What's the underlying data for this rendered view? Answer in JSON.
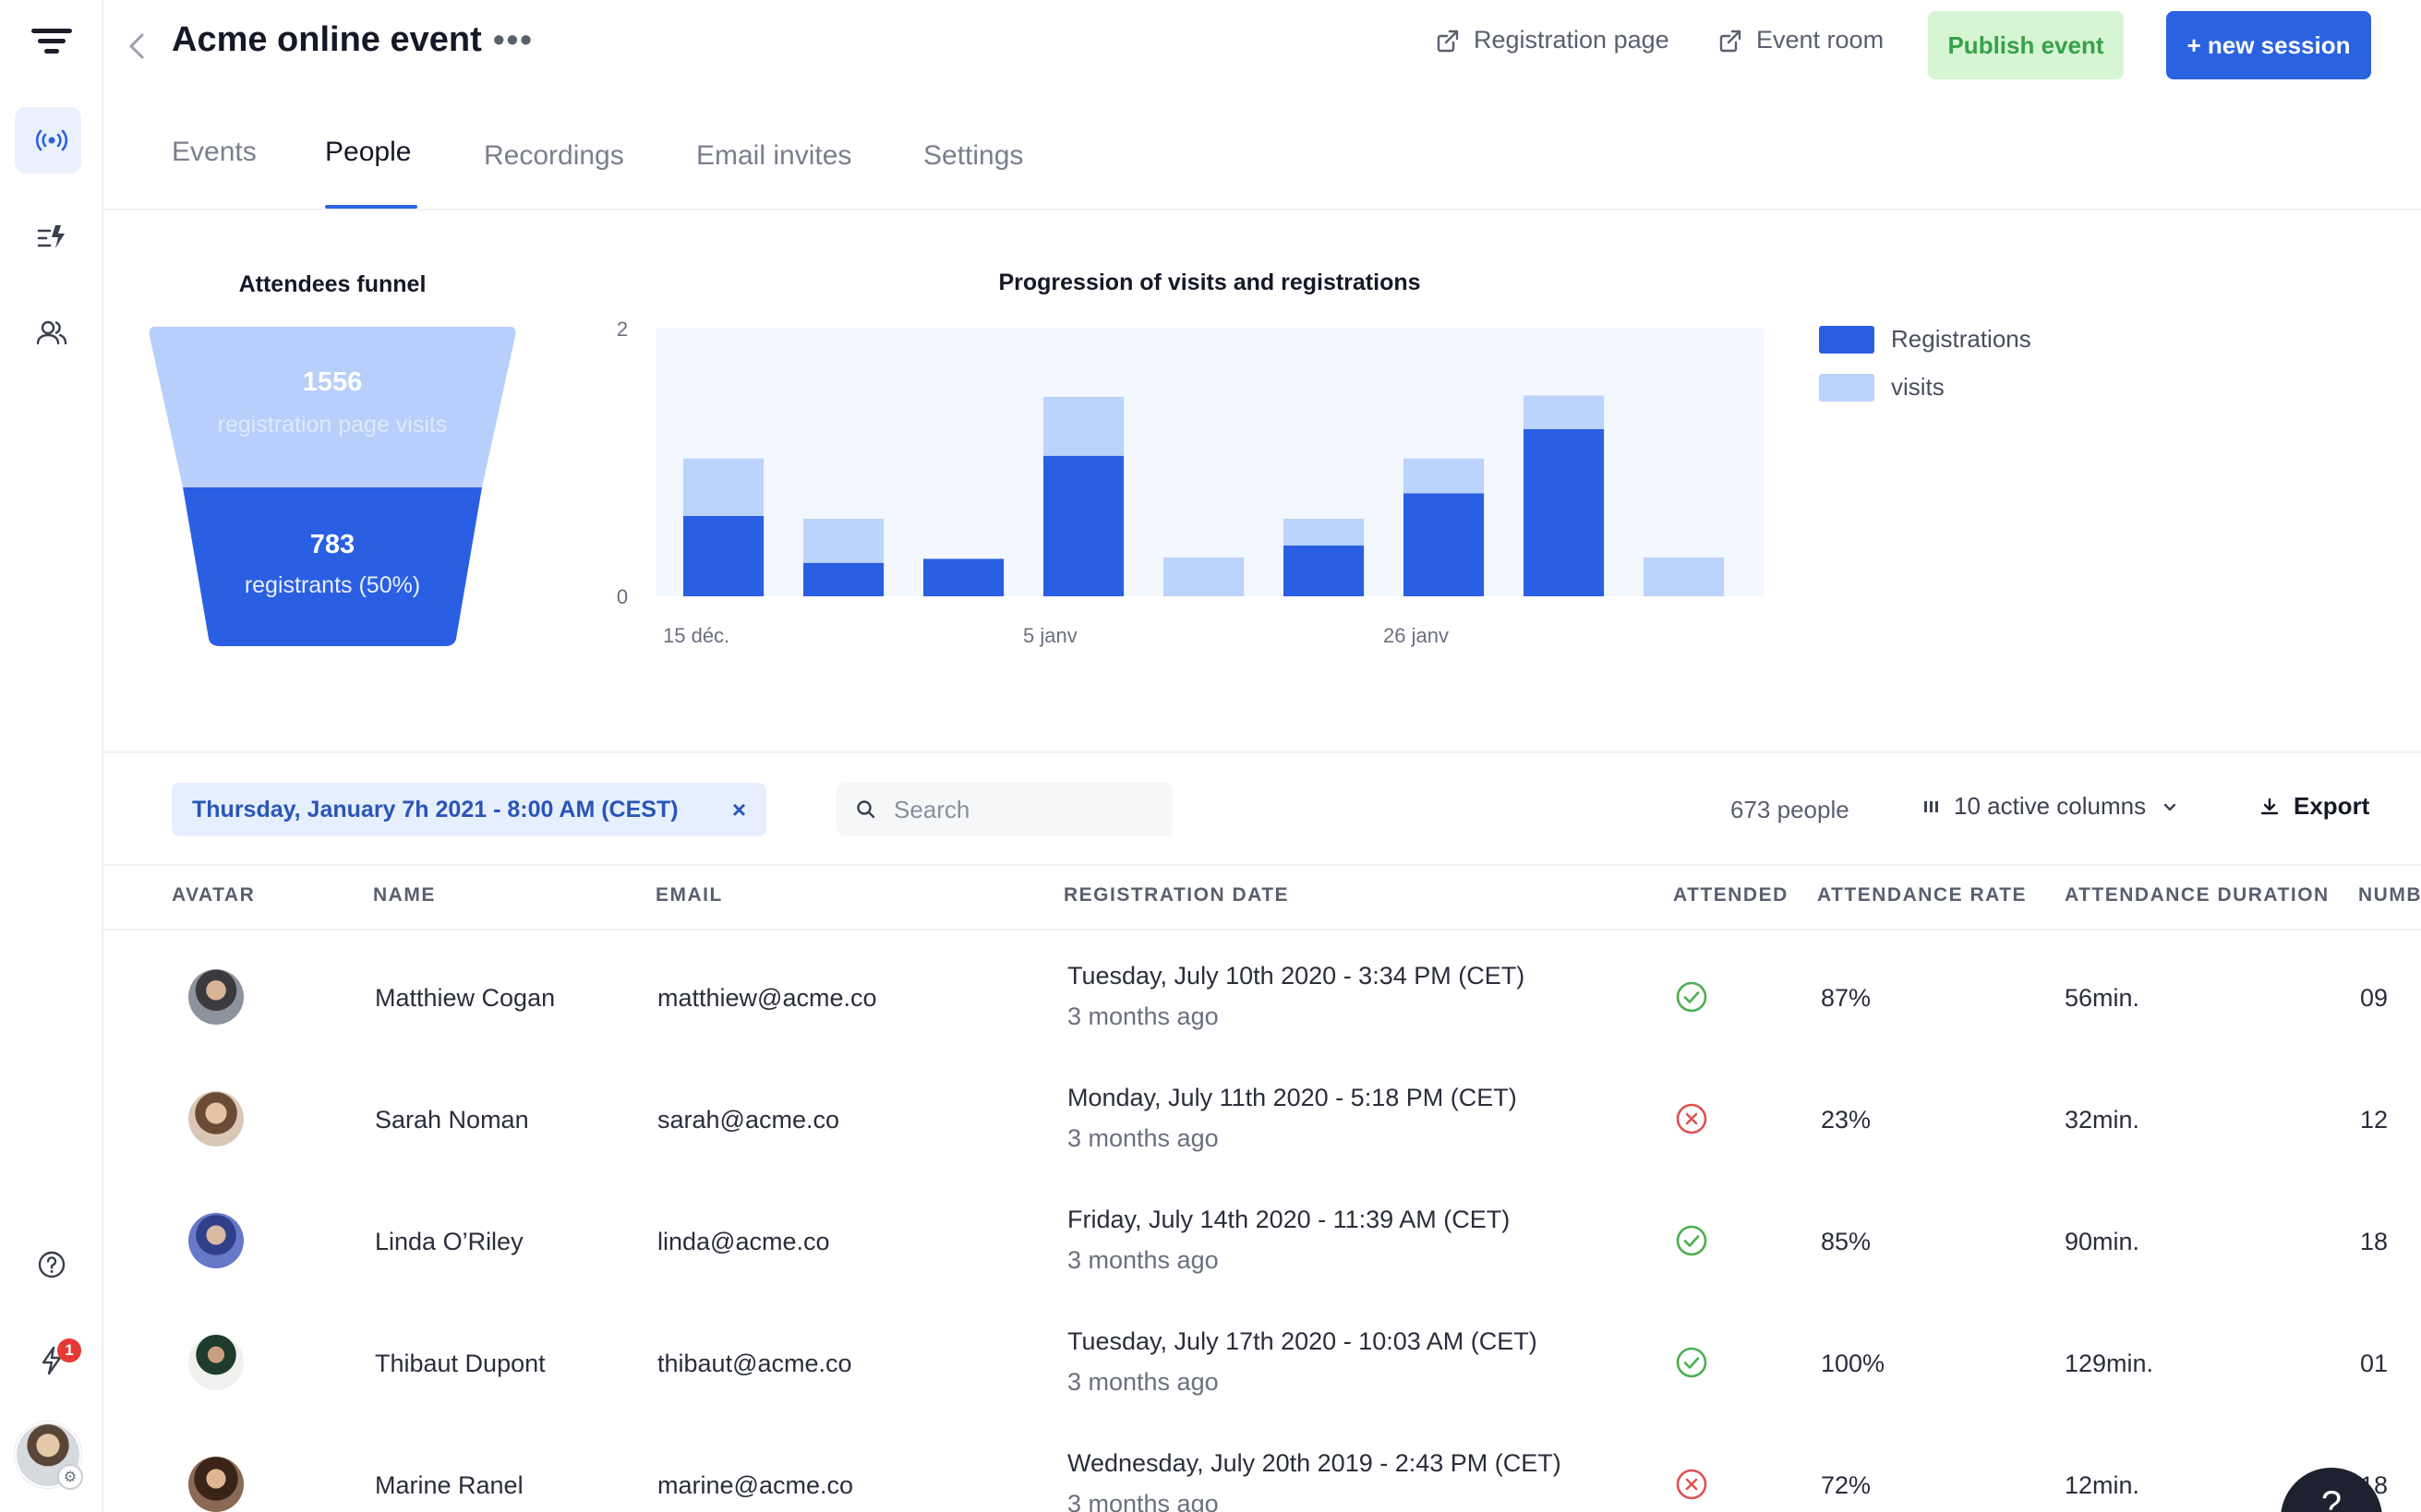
{
  "header": {
    "title": "Acme online event",
    "more": "•••",
    "registration_page": "Registration page",
    "event_room": "Event room",
    "publish": "Publish event",
    "new_session": "+ new session"
  },
  "tabs": [
    {
      "label": "Events",
      "active": false
    },
    {
      "label": "People",
      "active": true
    },
    {
      "label": "Recordings",
      "active": false
    },
    {
      "label": "Email invites",
      "active": false
    },
    {
      "label": "Settings",
      "active": false
    }
  ],
  "rail": {
    "icons": [
      "filter-icon",
      "broadcast-icon",
      "lightning-list-icon",
      "users-icon",
      "help-icon",
      "lightning-icon"
    ],
    "notification_count": "1"
  },
  "funnel": {
    "title": "Attendees funnel",
    "visits_value": "1556",
    "visits_label": "registration page visits",
    "registrants_value": "783",
    "registrants_label": "registrants (50%)"
  },
  "colors": {
    "accent": "#2a62e0",
    "registrations": "#2b5fe3",
    "visits": "#bcd3fb",
    "chart_bg": "#f3f7ff",
    "success": "#4caf50",
    "danger": "#e05252"
  },
  "chart_data": {
    "type": "bar",
    "stacked": true,
    "title": "Progression of visits and registrations",
    "y_ticks": [
      "2",
      "0"
    ],
    "ylim": [
      0,
      2
    ],
    "x_tick_labels": [
      {
        "label": "15 déc.",
        "index": 0
      },
      {
        "label": "5 janv",
        "index": 3
      },
      {
        "label": "26 janv",
        "index": 6
      }
    ],
    "categories": [
      "1",
      "2",
      "3",
      "4",
      "5",
      "6",
      "7",
      "8",
      "9"
    ],
    "series": [
      {
        "name": "Registrations",
        "values": [
          0.6,
          0.25,
          0.28,
          1.05,
          0,
          0.38,
          0.77,
          1.25,
          0
        ]
      },
      {
        "name": "visits",
        "values": [
          0.43,
          0.33,
          0,
          0.44,
          0.29,
          0.2,
          0.26,
          0.25,
          0.29
        ]
      }
    ],
    "legend_position": "right"
  },
  "toolbar": {
    "date_filter": "Thursday, January 7h 2021 - 8:00 AM (CEST)",
    "date_filter_close": "×",
    "search_placeholder": "Search",
    "people_count": "673 people",
    "columns": "10 active columns",
    "export": "Export"
  },
  "table": {
    "headers": [
      "AVATAR",
      "NAME",
      "EMAIL",
      "REGISTRATION DATE",
      "ATTENDED",
      "ATTENDANCE RATE",
      "ATTENDANCE DURATION",
      "NUMB"
    ],
    "rows": [
      {
        "name": "Matthiew Cogan",
        "email": "matthiew@acme.co",
        "date": "Tuesday, July 10th 2020 - 3:34 PM (CET)",
        "ago": "3 months ago",
        "attended": true,
        "rate": "87%",
        "duration": "56min.",
        "number": "09"
      },
      {
        "name": "Sarah Noman",
        "email": "sarah@acme.co",
        "date": "Monday, July 11th 2020 - 5:18 PM (CET)",
        "ago": "3 months ago",
        "attended": false,
        "rate": "23%",
        "duration": "32min.",
        "number": "12"
      },
      {
        "name": "Linda O’Riley",
        "email": "linda@acme.co",
        "date": "Friday, July 14th 2020 - 11:39 AM (CET)",
        "ago": "3 months ago",
        "attended": true,
        "rate": "85%",
        "duration": "90min.",
        "number": "18"
      },
      {
        "name": "Thibaut Dupont",
        "email": "thibaut@acme.co",
        "date": "Tuesday, July 17th 2020 - 10:03 AM (CET)",
        "ago": "3 months ago",
        "attended": true,
        "rate": "100%",
        "duration": "129min.",
        "number": "01"
      },
      {
        "name": "Marine Ranel",
        "email": "marine@acme.co",
        "date": "Wednesday, July 20th 2019 - 2:43 PM (CET)",
        "ago": "3 months ago",
        "attended": false,
        "rate": "72%",
        "duration": "12min.",
        "number": "18"
      }
    ]
  }
}
